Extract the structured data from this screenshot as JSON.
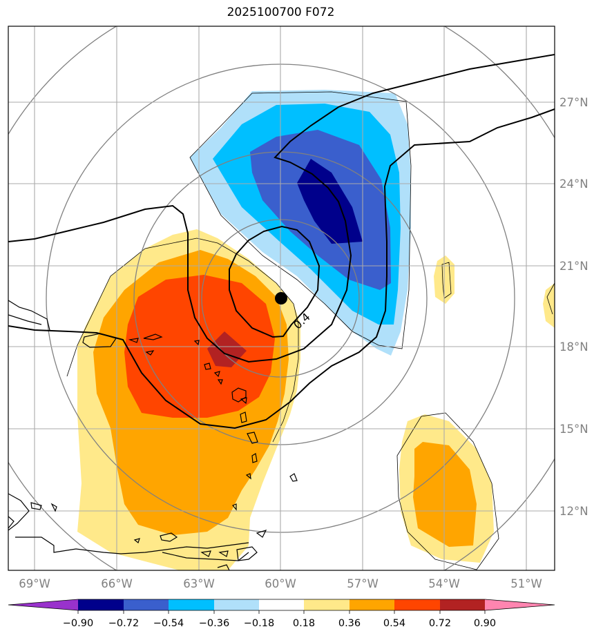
{
  "title": "2025100700 F072",
  "lon_labels": [
    "69°W",
    "66°W",
    "63°W",
    "60°W",
    "57°W",
    "54°W",
    "51°W"
  ],
  "lat_labels": [
    "27°N",
    "24°N",
    "21°N",
    "18°N",
    "15°N",
    "12°N"
  ],
  "contour_label": "0.4",
  "colorbar": {
    "tick_labels": [
      "−0.90",
      "−0.72",
      "−0.54",
      "−0.36",
      "−0.18",
      "0.18",
      "0.36",
      "0.54",
      "0.72",
      "0.90"
    ],
    "colors": [
      "#9932cc",
      "#00008b",
      "#3a5fcd",
      "#00bfff",
      "#b0e0fa",
      "#ffffff",
      "#ffe98a",
      "#ffa500",
      "#ff4500",
      "#b22222",
      "#ff85b0"
    ]
  },
  "legend_colors": {
    "pos_018": "#ffe98a",
    "pos_036": "#ffa500",
    "pos_054": "#ff4500",
    "pos_072": "#b22222",
    "neg_018": "#b0e0fa",
    "neg_036": "#00bfff",
    "neg_054": "#3a5fcd",
    "neg_072": "#00008b"
  },
  "storm_center": {
    "lon": -60.0,
    "lat": 19.8
  }
}
